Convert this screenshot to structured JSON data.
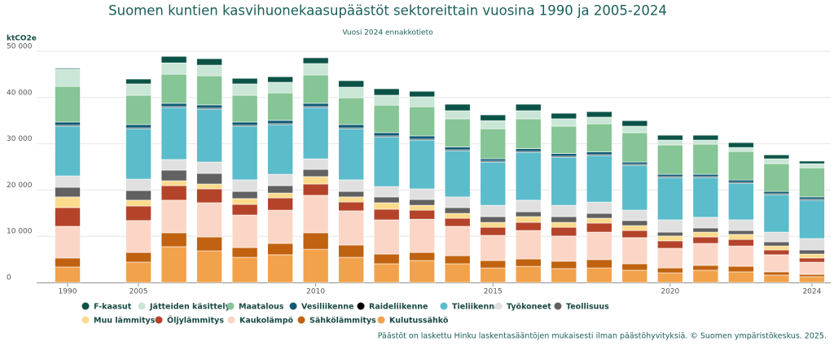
{
  "chart_data": {
    "type": "stacked-bar",
    "title": "Suomen kuntien kasvihuonekaasupäästöt sektoreittain vuosina 1990 ja 2005-2024",
    "subtitle": "Vuosi 2024 ennakkotieto",
    "y_label": "ktCO2e",
    "note": "Päästöt on laskettu Hinku laskentasääntöjen mukaisesti ilman päästöhyvityksiä. © Suomen ympäristökeskus. 2025.",
    "categories": [
      "1990",
      null,
      "2005",
      null,
      null,
      null,
      null,
      "2010",
      null,
      null,
      null,
      null,
      "2015",
      null,
      null,
      null,
      null,
      "2020",
      null,
      null,
      null,
      "2024"
    ],
    "ylim": [
      0,
      50000
    ],
    "yticks": [
      0,
      {
        "value": 10000,
        "label": "10 000"
      },
      {
        "value": 20000,
        "label": "20 000"
      },
      {
        "value": 30000,
        "label": "30 000"
      },
      {
        "value": 40000,
        "label": "40 000"
      },
      {
        "value": 50000,
        "label": "50 000"
      }
    ],
    "grid": true,
    "series": [
      {
        "name": "F-kaasut",
        "color": "#0b5347",
        "values": [
          200,
          null,
          1050,
          1400,
          1400,
          1200,
          1200,
          1250,
          1400,
          1400,
          1200,
          1400,
          1250,
          1400,
          1200,
          1200,
          1200,
          1050,
          1050,
          1050,
          850,
          550
        ]
      },
      {
        "name": "Jätteiden käsittely",
        "color": "#c9e6d6",
        "values": [
          3700,
          null,
          2450,
          2450,
          2300,
          2450,
          2300,
          2450,
          2300,
          2150,
          2150,
          1750,
          1750,
          1750,
          1600,
          1450,
          1400,
          1050,
          900,
          850,
          1050,
          900
        ]
      },
      {
        "name": "Maatalous",
        "color": "#86c595",
        "values": [
          7700,
          null,
          6350,
          6300,
          6300,
          5800,
          5950,
          6150,
          5800,
          5950,
          6300,
          6100,
          6500,
          6450,
          5900,
          6050,
          6350,
          6350,
          6500,
          6200,
          6000,
          6300
        ]
      },
      {
        "name": "Vesiliikenne",
        "color": "#0e5a75",
        "values": [
          700,
          null,
          700,
          700,
          700,
          700,
          700,
          700,
          700,
          700,
          700,
          600,
          500,
          600,
          600,
          600,
          500,
          500,
          500,
          500,
          500,
          500
        ]
      },
      {
        "name": "Raideliikenne",
        "color": "#000000",
        "values": [
          200,
          null,
          200,
          200,
          200,
          200,
          200,
          200,
          200,
          200,
          200,
          200,
          200,
          200,
          200,
          200,
          200,
          200,
          200,
          200,
          200,
          200
        ]
      },
      {
        "name": "Tieliikenne",
        "color": "#5bbccb",
        "values": [
          10750,
          null,
          10900,
          11250,
          11450,
          11600,
          10750,
          11100,
          11050,
          10750,
          10550,
          10000,
          9350,
          10350,
          10400,
          10050,
          9700,
          9150,
          8600,
          7900,
          8100,
          8300
        ]
      },
      {
        "name": "Työkoneet",
        "color": "#e0e0e0",
        "values": [
          2450,
          null,
          2450,
          2300,
          2450,
          2500,
          2450,
          2300,
          2500,
          2250,
          2300,
          2300,
          2450,
          2500,
          2450,
          2450,
          2250,
          2650,
          2300,
          2300,
          2100,
          2450
        ]
      },
      {
        "name": "Teollisuus",
        "color": "#616161",
        "values": [
          2100,
          null,
          2100,
          2300,
          2300,
          1550,
          1600,
          1550,
          1200,
          1250,
          1250,
          1250,
          1250,
          1050,
          1250,
          1050,
          1100,
          850,
          900,
          850,
          900,
          900
        ]
      },
      {
        "name": "Muu lämmitys",
        "color": "#fbdb8c",
        "values": [
          2300,
          null,
          1250,
          1050,
          1050,
          1250,
          1050,
          1600,
          1100,
          1400,
          1050,
          1050,
          1050,
          1250,
          1050,
          1050,
          1050,
          1050,
          1050,
          1100,
          850,
          850
        ]
      },
      {
        "name": "Öljylämmitys",
        "color": "#b5432a",
        "values": [
          4050,
          null,
          3150,
          3150,
          3000,
          2300,
          2650,
          2450,
          1900,
          2300,
          1950,
          1750,
          1750,
          1750,
          1900,
          1950,
          1550,
          1600,
          1400,
          1400,
          1050,
          900
        ]
      },
      {
        "name": "Kaukolämpö",
        "color": "#fbd6c6",
        "values": [
          6850,
          null,
          6900,
          7050,
          7400,
          7050,
          7200,
          8100,
          7400,
          7400,
          7200,
          6350,
          5450,
          6150,
          5450,
          5950,
          5650,
          4250,
          4750,
          4400,
          3700,
          2650
        ]
      },
      {
        "name": "Sähkölämmitys",
        "color": "#c0620f",
        "values": [
          1950,
          null,
          2100,
          3000,
          3000,
          2100,
          2450,
          3550,
          2650,
          2100,
          1750,
          1750,
          1600,
          1600,
          1600,
          1800,
          1400,
          1050,
          1050,
          1200,
          700,
          500
        ]
      },
      {
        "name": "Kulutussähkö",
        "color": "#f2a24b",
        "values": [
          3350,
          null,
          4400,
          7750,
          6850,
          5450,
          6000,
          7200,
          5450,
          4050,
          4750,
          4050,
          3150,
          3500,
          3000,
          3150,
          2650,
          2100,
          2650,
          2300,
          1600,
          1250
        ]
      }
    ]
  }
}
